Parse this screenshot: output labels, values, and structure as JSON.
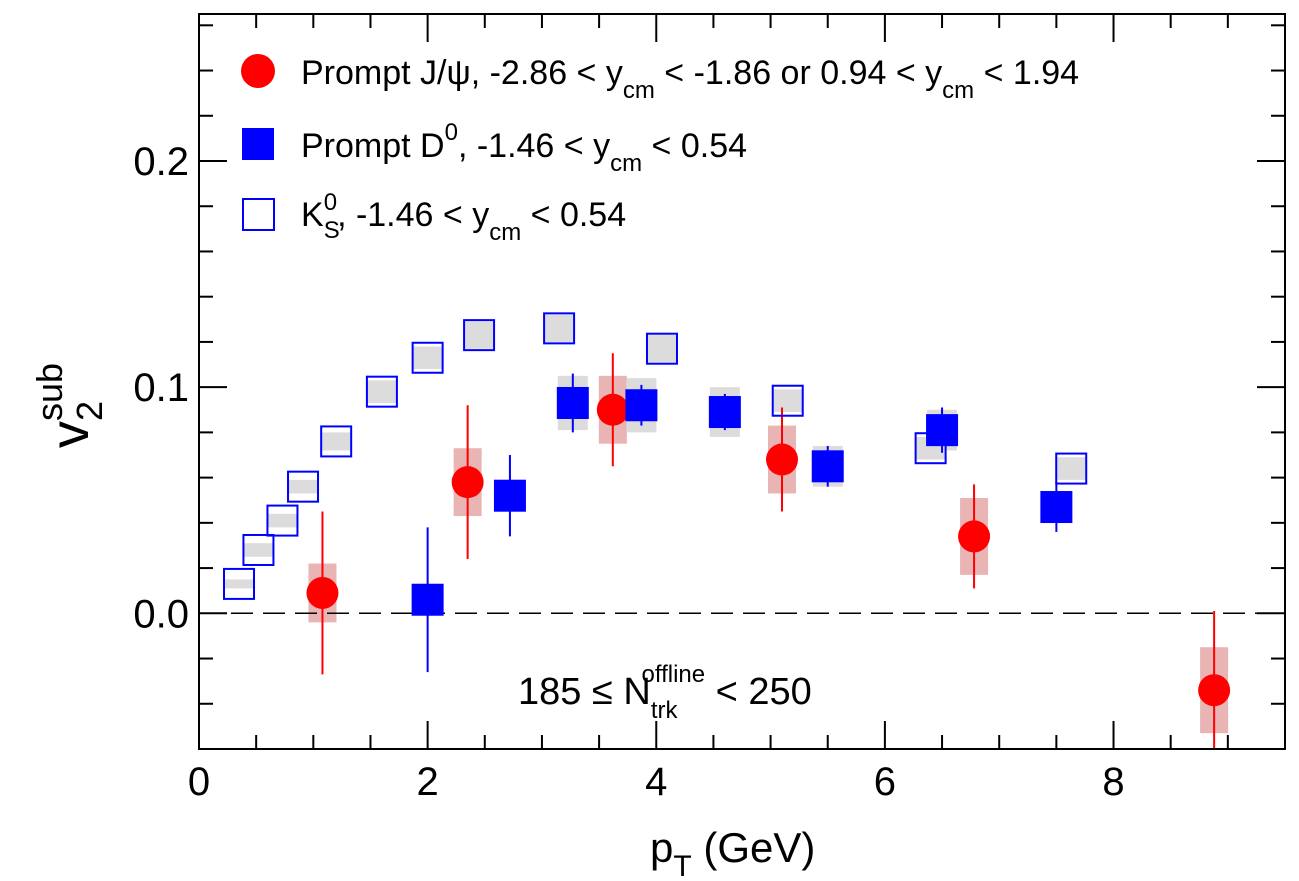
{
  "chart_data": {
    "type": "scatter",
    "title": "",
    "xlabel": "p",
    "xlabel_sub": "T",
    "xlabel_rest": " (GeV)",
    "ylabel": "v",
    "ylabel_sub": "2",
    "ylabel_sup": "sub",
    "xlim": [
      0,
      9.5
    ],
    "ylim": [
      -0.06,
      0.265
    ],
    "x_ticks": [
      0,
      2,
      4,
      6,
      8
    ],
    "x_tick_labels": [
      "0",
      "2",
      "4",
      "6",
      "8"
    ],
    "y_ticks": [
      0.0,
      0.1,
      0.2
    ],
    "y_tick_labels": [
      "0.0",
      "0.1",
      "0.2"
    ],
    "zero_line": true,
    "legend_position": "top-left",
    "legend": [
      {
        "marker": "filled-circle",
        "color": "#ff0000",
        "main": "Prompt J/ψ, -2.86 < y",
        "sub1": "cm",
        "mid": " < -1.86 or 0.94 < y",
        "sub2": "cm",
        "tail": " < 1.94"
      },
      {
        "marker": "filled-square",
        "color": "#0000ff",
        "main": "Prompt D",
        "sup": "0",
        "rest": ", -1.46 < y",
        "sub1": "cm",
        "tail": " < 0.54"
      },
      {
        "marker": "open-square",
        "color": "#0000ff",
        "main": "K",
        "sub": "S",
        "sup": "0",
        "rest": ", -1.46 < y",
        "sub1": "cm",
        "tail": " < 0.54"
      }
    ],
    "annotation": {
      "lead": "185 ≤ N",
      "sub": "trk",
      "sup": "offline",
      "tail": " < 250"
    },
    "series": [
      {
        "name": "Prompt J/ψ",
        "marker": "filled-circle",
        "color": "#ff0000",
        "syst_color": "#e8b4b4",
        "points": [
          {
            "x": 1.08,
            "y": 0.009,
            "stat": 0.036,
            "syst": 0.013
          },
          {
            "x": 2.35,
            "y": 0.058,
            "stat": 0.034,
            "syst": 0.015
          },
          {
            "x": 3.62,
            "y": 0.09,
            "stat": 0.025,
            "syst": 0.015
          },
          {
            "x": 5.1,
            "y": 0.068,
            "stat": 0.023,
            "syst": 0.015
          },
          {
            "x": 6.78,
            "y": 0.034,
            "stat": 0.023,
            "syst": 0.017
          },
          {
            "x": 8.88,
            "y": -0.034,
            "stat": 0.035,
            "syst": 0.019
          }
        ]
      },
      {
        "name": "Prompt D0",
        "marker": "filled-square",
        "color": "#0000ff",
        "syst_color": "#dcdcdc",
        "points": [
          {
            "x": 2.0,
            "y": 0.006,
            "stat": 0.032,
            "syst": 0.004
          },
          {
            "x": 2.72,
            "y": 0.052,
            "stat": 0.018,
            "syst": 0.006
          },
          {
            "x": 3.27,
            "y": 0.093,
            "stat": 0.013,
            "syst": 0.012
          },
          {
            "x": 3.87,
            "y": 0.092,
            "stat": 0.009,
            "syst": 0.012
          },
          {
            "x": 4.6,
            "y": 0.089,
            "stat": 0.008,
            "syst": 0.011
          },
          {
            "x": 5.5,
            "y": 0.065,
            "stat": 0.009,
            "syst": 0.009
          },
          {
            "x": 6.5,
            "y": 0.081,
            "stat": 0.01,
            "syst": 0.009
          },
          {
            "x": 7.5,
            "y": 0.047,
            "stat": 0.011,
            "syst": 0.004
          }
        ]
      },
      {
        "name": "KS0",
        "marker": "open-square",
        "color": "#0000ff",
        "syst_color": "#dcdcdc",
        "points": [
          {
            "x": 0.35,
            "y": 0.013,
            "syst": 0.002
          },
          {
            "x": 0.52,
            "y": 0.028,
            "syst": 0.003
          },
          {
            "x": 0.73,
            "y": 0.041,
            "syst": 0.003
          },
          {
            "x": 0.91,
            "y": 0.056,
            "syst": 0.003
          },
          {
            "x": 1.2,
            "y": 0.076,
            "syst": 0.004
          },
          {
            "x": 1.6,
            "y": 0.098,
            "syst": 0.005
          },
          {
            "x": 2.0,
            "y": 0.113,
            "syst": 0.005
          },
          {
            "x": 2.45,
            "y": 0.123,
            "syst": 0.006
          },
          {
            "x": 3.15,
            "y": 0.126,
            "syst": 0.006
          },
          {
            "x": 4.05,
            "y": 0.117,
            "syst": 0.006
          },
          {
            "x": 5.15,
            "y": 0.094,
            "syst": 0.005
          },
          {
            "x": 6.4,
            "y": 0.073,
            "syst": 0.005
          },
          {
            "x": 7.63,
            "y": 0.064,
            "syst": 0.005
          }
        ]
      }
    ]
  }
}
